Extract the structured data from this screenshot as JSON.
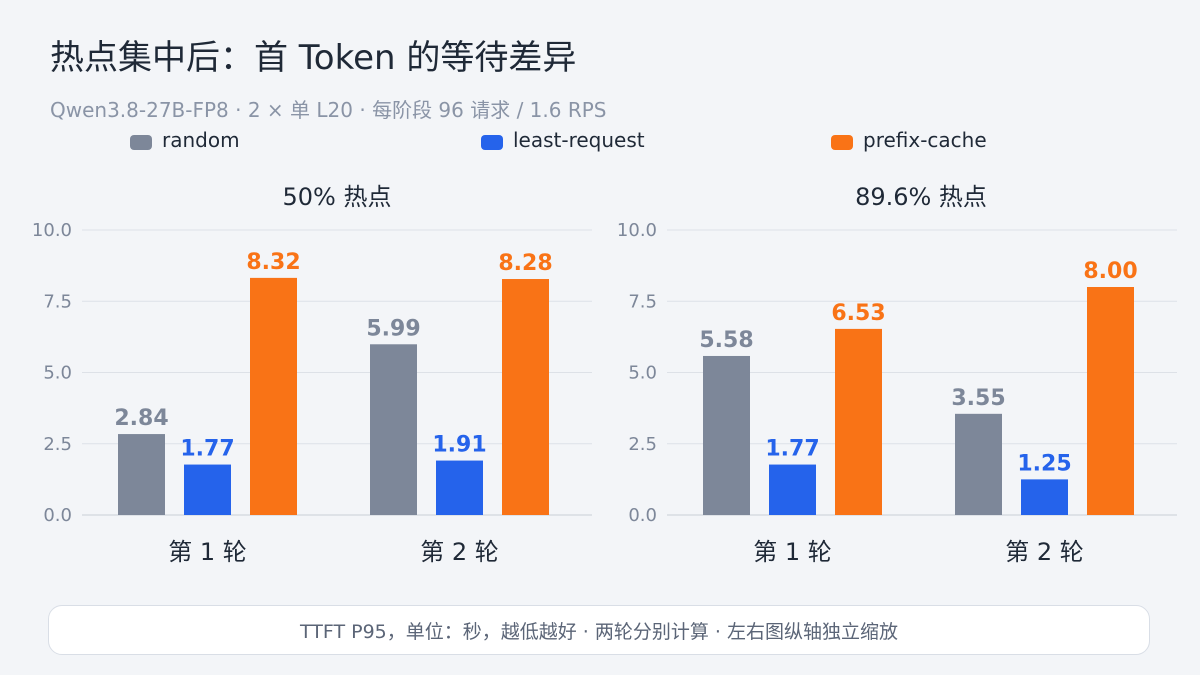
{
  "header": {
    "title": "热点集中后：首 Token 的等待差异",
    "subtitle": "Qwen3.8-27B-FP8 · 2 × 单 L20 · 每阶段 96 请求 / 1.6 RPS"
  },
  "colors": {
    "random": "#7d8799",
    "least_request": "#2563eb",
    "prefix_cache": "#f97316"
  },
  "legend": [
    {
      "name": "random",
      "color": "#7d8799"
    },
    {
      "name": "least-request",
      "color": "#2563eb"
    },
    {
      "name": "prefix-cache",
      "color": "#f97316"
    }
  ],
  "chart_data": [
    {
      "type": "bar",
      "title": "50% 热点",
      "categories": [
        "第 1 轮",
        "第 2 轮"
      ],
      "ylim": [
        0,
        10
      ],
      "yticks": [
        "0.0",
        "2.5",
        "5.0",
        "7.5",
        "10.0"
      ],
      "grid": true,
      "legend_position": "top",
      "series": [
        {
          "name": "random",
          "values": [
            2.84,
            5.99
          ],
          "labels": [
            "2.84",
            "5.99"
          ]
        },
        {
          "name": "least-request",
          "values": [
            1.77,
            1.91
          ],
          "labels": [
            "1.77",
            "1.91"
          ]
        },
        {
          "name": "prefix-cache",
          "values": [
            8.32,
            8.28
          ],
          "labels": [
            "8.32",
            "8.28"
          ]
        }
      ]
    },
    {
      "type": "bar",
      "title": "89.6% 热点",
      "categories": [
        "第 1 轮",
        "第 2 轮"
      ],
      "ylim": [
        0,
        10
      ],
      "yticks": [
        "0.0",
        "2.5",
        "5.0",
        "7.5",
        "10.0"
      ],
      "grid": true,
      "legend_position": "top",
      "series": [
        {
          "name": "random",
          "values": [
            5.58,
            3.55
          ],
          "labels": [
            "5.58",
            "3.55"
          ]
        },
        {
          "name": "least-request",
          "values": [
            1.77,
            1.25
          ],
          "labels": [
            "1.77",
            "1.25"
          ]
        },
        {
          "name": "prefix-cache",
          "values": [
            6.53,
            8.0
          ],
          "labels": [
            "6.53",
            "8.00"
          ]
        }
      ]
    }
  ],
  "footer": {
    "note": "TTFT P95，单位：秒，越低越好 · 两轮分别计算 · 左右图纵轴独立缩放"
  }
}
